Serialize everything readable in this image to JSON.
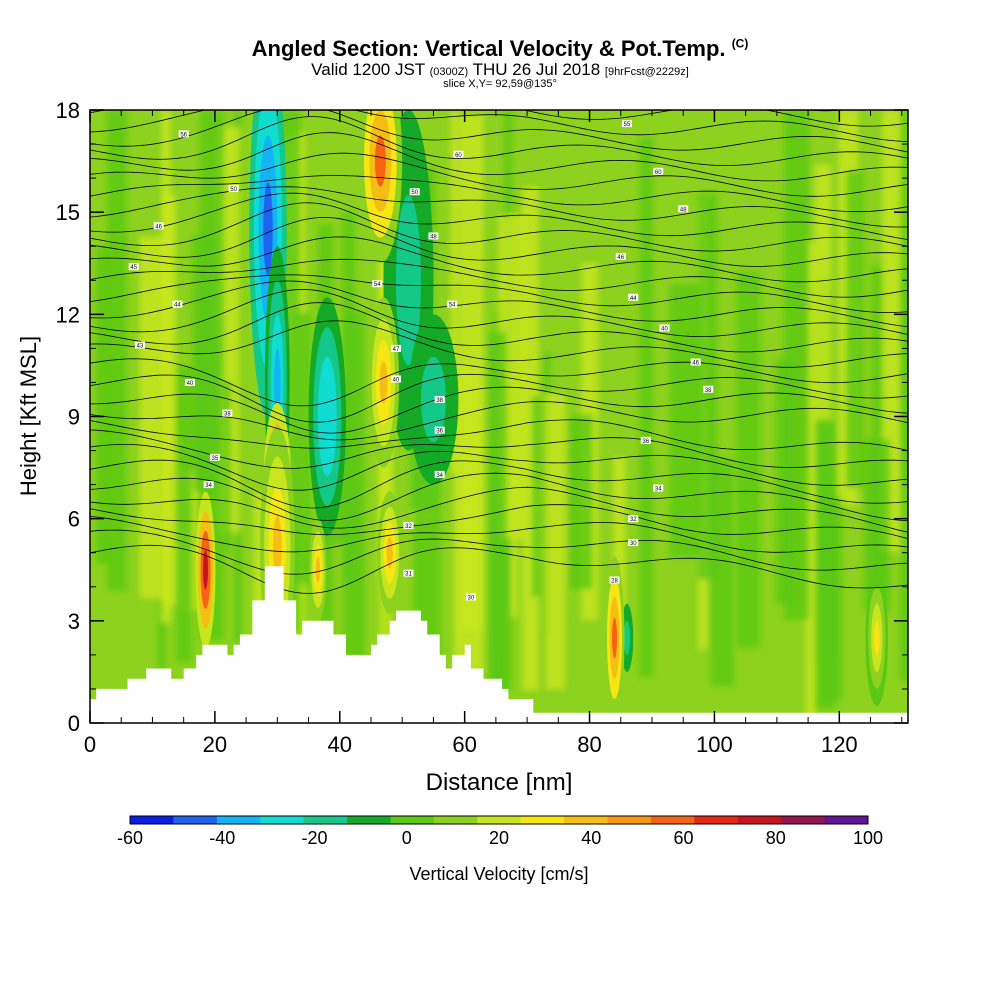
{
  "title": {
    "main": "Angled Section: Vertical Velocity & Pot.Temp.",
    "main_tag": "(C)",
    "valid_prefix": "Valid 1200 JST",
    "valid_utc": "(0300Z)",
    "valid_date": "THU 26 Jul 2018",
    "forecast": "[9hrFcst@2229z]",
    "slice": "slice X,Y= 92,59@135°"
  },
  "chart_data": {
    "type": "heatmap",
    "xlabel": "Distance [nm]",
    "ylabel": "Height [Kft MSL]",
    "xlim": [
      0,
      131
    ],
    "ylim": [
      0,
      18
    ],
    "x_ticks": [
      "0",
      "20",
      "40",
      "60",
      "80",
      "100",
      "120"
    ],
    "y_ticks": [
      "0",
      "3",
      "6",
      "9",
      "12",
      "15",
      "18"
    ],
    "colorbar": {
      "label": "Vertical Velocity [cm/s]",
      "tick_labels": [
        "-60",
        "-40",
        "-20",
        "0",
        "20",
        "40",
        "60",
        "80",
        "100"
      ],
      "levels": [
        -60,
        -50,
        -40,
        -30,
        -20,
        -10,
        0,
        10,
        20,
        30,
        40,
        50,
        60,
        70,
        80,
        90,
        100
      ],
      "colors": [
        "#0a1ee6",
        "#1e64f0",
        "#12b4f5",
        "#10dcd2",
        "#14c88a",
        "#14aa28",
        "#5ac814",
        "#8cd21e",
        "#c8e61e",
        "#f5e614",
        "#f5be14",
        "#f59614",
        "#f56414",
        "#e62814",
        "#c8141e",
        "#961450",
        "#641496"
      ]
    },
    "terrain_nm_kft": [
      [
        0,
        0.7
      ],
      [
        1,
        0.7
      ],
      [
        1,
        1.0
      ],
      [
        6,
        1.0
      ],
      [
        6,
        1.3
      ],
      [
        9,
        1.3
      ],
      [
        9,
        1.6
      ],
      [
        13,
        1.6
      ],
      [
        13,
        1.3
      ],
      [
        15,
        1.3
      ],
      [
        15,
        1.6
      ],
      [
        17,
        1.6
      ],
      [
        17,
        2.0
      ],
      [
        18,
        2.0
      ],
      [
        18,
        2.3
      ],
      [
        22,
        2.3
      ],
      [
        22,
        2.0
      ],
      [
        23,
        2.0
      ],
      [
        23,
        2.3
      ],
      [
        24,
        2.3
      ],
      [
        24,
        2.6
      ],
      [
        26,
        2.6
      ],
      [
        26,
        3.6
      ],
      [
        28,
        3.6
      ],
      [
        28,
        4.6
      ],
      [
        31,
        4.6
      ],
      [
        31,
        3.6
      ],
      [
        33,
        3.6
      ],
      [
        33,
        2.6
      ],
      [
        34,
        2.6
      ],
      [
        34,
        3.0
      ],
      [
        39,
        3.0
      ],
      [
        39,
        2.6
      ],
      [
        41,
        2.6
      ],
      [
        41,
        2.0
      ],
      [
        45,
        2.0
      ],
      [
        45,
        2.3
      ],
      [
        46,
        2.3
      ],
      [
        46,
        2.6
      ],
      [
        48,
        2.6
      ],
      [
        48,
        3.0
      ],
      [
        49,
        3.0
      ],
      [
        49,
        3.3
      ],
      [
        53,
        3.3
      ],
      [
        53,
        3.0
      ],
      [
        54,
        3.0
      ],
      [
        54,
        2.6
      ],
      [
        56,
        2.6
      ],
      [
        56,
        2.0
      ],
      [
        57,
        2.0
      ],
      [
        57,
        1.6
      ],
      [
        58,
        1.6
      ],
      [
        58,
        2.0
      ],
      [
        60,
        2.0
      ],
      [
        60,
        2.3
      ],
      [
        61,
        2.3
      ],
      [
        61,
        1.6
      ],
      [
        63,
        1.6
      ],
      [
        63,
        1.3
      ],
      [
        66,
        1.3
      ],
      [
        66,
        1.0
      ],
      [
        67,
        1.0
      ],
      [
        67,
        0.7
      ],
      [
        71,
        0.7
      ],
      [
        71,
        0.3
      ],
      [
        131,
        0.3
      ]
    ],
    "updrafts": [
      {
        "x": 18.5,
        "y": 4.5,
        "w": 1.6,
        "h": 2.3,
        "value": 80
      },
      {
        "x": 30,
        "y": 7.0,
        "w": 2.2,
        "h": 2.4,
        "value": 90
      },
      {
        "x": 30,
        "y": 5.2,
        "w": 2.8,
        "h": 3.5,
        "value": 40
      },
      {
        "x": 46.5,
        "y": 16.5,
        "w": 3.5,
        "h": 3.0,
        "value": 60
      },
      {
        "x": 47,
        "y": 10.0,
        "w": 2.5,
        "h": 2.5,
        "value": 40
      },
      {
        "x": 48,
        "y": 5.0,
        "w": 2.0,
        "h": 1.8,
        "value": 40
      },
      {
        "x": 36.5,
        "y": 4.5,
        "w": 1.4,
        "h": 1.5,
        "value": 40
      },
      {
        "x": 84,
        "y": 2.5,
        "w": 1.6,
        "h": 2.4,
        "value": 60
      },
      {
        "x": 126,
        "y": 2.5,
        "w": 1.8,
        "h": 2.0,
        "value": 30
      }
    ],
    "downdrafts": [
      {
        "x": 28.5,
        "y": 14.5,
        "w": 3.0,
        "h": 5.5,
        "value": -50
      },
      {
        "x": 30,
        "y": 10.0,
        "w": 2.0,
        "h": 4.0,
        "value": -40
      },
      {
        "x": 38,
        "y": 9.0,
        "w": 3.0,
        "h": 3.5,
        "value": -30
      },
      {
        "x": 51,
        "y": 13.0,
        "w": 4.0,
        "h": 5.0,
        "value": -20
      },
      {
        "x": 55,
        "y": 9.5,
        "w": 4.0,
        "h": 2.5,
        "value": -20
      },
      {
        "x": 86,
        "y": 2.5,
        "w": 1.0,
        "h": 1.0,
        "value": -20
      }
    ],
    "theta_contours": {
      "interval_c": 1,
      "base_c": 24,
      "count": 36
    },
    "theta_labels": [
      {
        "x": 15,
        "y": 17.3,
        "text": "56"
      },
      {
        "x": 23,
        "y": 15.7,
        "text": "50"
      },
      {
        "x": 11,
        "y": 14.6,
        "text": "46"
      },
      {
        "x": 7,
        "y": 13.4,
        "text": "45"
      },
      {
        "x": 14,
        "y": 12.3,
        "text": "44"
      },
      {
        "x": 8,
        "y": 11.1,
        "text": "43"
      },
      {
        "x": 16,
        "y": 10.0,
        "text": "40"
      },
      {
        "x": 22,
        "y": 9.1,
        "text": "38"
      },
      {
        "x": 20,
        "y": 7.8,
        "text": "35"
      },
      {
        "x": 19,
        "y": 7.0,
        "text": "34"
      },
      {
        "x": 59,
        "y": 16.7,
        "text": "60"
      },
      {
        "x": 52,
        "y": 15.6,
        "text": "50"
      },
      {
        "x": 55,
        "y": 14.3,
        "text": "48"
      },
      {
        "x": 58,
        "y": 12.3,
        "text": "54"
      },
      {
        "x": 46,
        "y": 12.9,
        "text": "54"
      },
      {
        "x": 49,
        "y": 11.0,
        "text": "47"
      },
      {
        "x": 49,
        "y": 10.1,
        "text": "40"
      },
      {
        "x": 56,
        "y": 9.5,
        "text": "38"
      },
      {
        "x": 56,
        "y": 8.6,
        "text": "36"
      },
      {
        "x": 56,
        "y": 7.3,
        "text": "34"
      },
      {
        "x": 51,
        "y": 5.8,
        "text": "32"
      },
      {
        "x": 51,
        "y": 4.4,
        "text": "31"
      },
      {
        "x": 61,
        "y": 3.7,
        "text": "30"
      },
      {
        "x": 86,
        "y": 17.6,
        "text": "55"
      },
      {
        "x": 91,
        "y": 16.2,
        "text": "60"
      },
      {
        "x": 95,
        "y": 15.1,
        "text": "48"
      },
      {
        "x": 85,
        "y": 13.7,
        "text": "46"
      },
      {
        "x": 87,
        "y": 12.5,
        "text": "44"
      },
      {
        "x": 92,
        "y": 11.6,
        "text": "40"
      },
      {
        "x": 97,
        "y": 10.6,
        "text": "46"
      },
      {
        "x": 99,
        "y": 9.8,
        "text": "38"
      },
      {
        "x": 89,
        "y": 8.3,
        "text": "36"
      },
      {
        "x": 91,
        "y": 6.9,
        "text": "34"
      },
      {
        "x": 87,
        "y": 6.0,
        "text": "32"
      },
      {
        "x": 87,
        "y": 5.3,
        "text": "30"
      },
      {
        "x": 84,
        "y": 4.2,
        "text": "28"
      }
    ]
  }
}
